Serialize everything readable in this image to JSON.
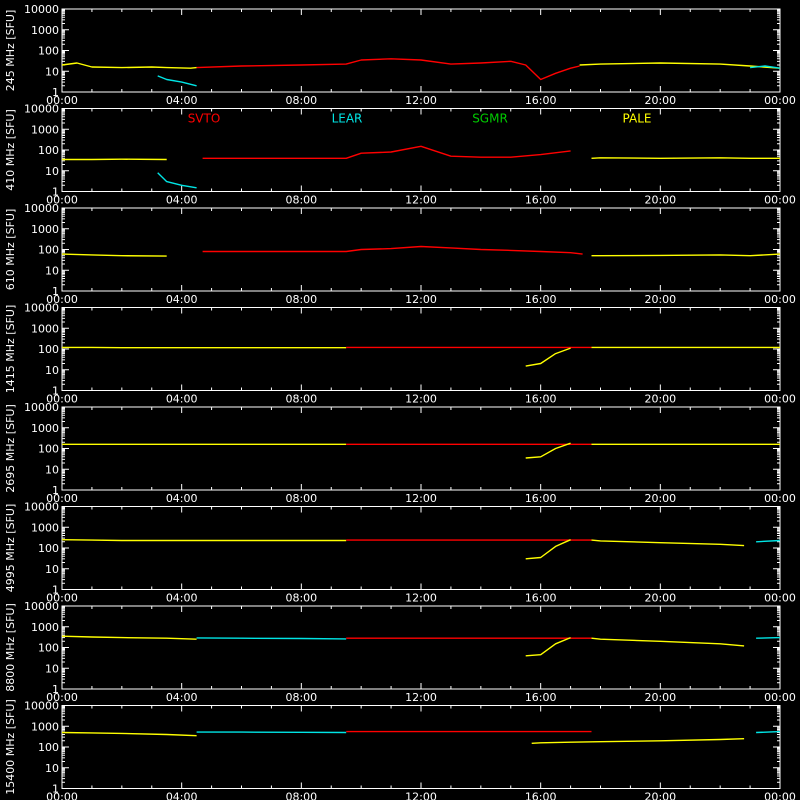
{
  "colors": {
    "background": "#000000",
    "axes": "#ffffff",
    "SVTO": "#ff0000",
    "LEAR": "#00e5e5",
    "SGMR": "#00cc00",
    "PALE": "#ffff00"
  },
  "chart_data": {
    "type": "line",
    "x_tick_labels": [
      "00:00",
      "04:00",
      "08:00",
      "12:00",
      "16:00",
      "20:00",
      "00:00"
    ],
    "xlim": [
      0,
      24
    ],
    "y_tick_labels": [
      "1",
      "10",
      "100",
      "1000",
      "10000"
    ],
    "ylim": [
      1,
      10000
    ],
    "yscale": "log",
    "legend": [
      "SVTO",
      "LEAR",
      "SGMR",
      "PALE"
    ],
    "legend_panel": 1,
    "panels": [
      {
        "ylabel": "245 MHz [SFU]",
        "series": [
          {
            "name": "PALE",
            "x": [
              0,
              0.5,
              1,
              2,
              3,
              3.5,
              4.3,
              4.5
            ],
            "y": [
              20,
              25,
              16,
              15,
              16,
              15,
              14,
              15
            ]
          },
          {
            "name": "LEAR",
            "x": [
              3.2,
              3.5,
              4.0,
              4.5
            ],
            "y": [
              6,
              4,
              3,
              2
            ]
          },
          {
            "name": "SVTO",
            "x": [
              4.5,
              6,
              8,
              9.5,
              10,
              11,
              12,
              13,
              14,
              15,
              15.5,
              16,
              16.5,
              17,
              17.3
            ],
            "y": [
              15,
              18,
              20,
              22,
              35,
              40,
              35,
              22,
              25,
              30,
              20,
              4,
              8,
              14,
              18
            ]
          },
          {
            "name": "PALE",
            "x": [
              17.3,
              18,
              20,
              22,
              23,
              24
            ],
            "y": [
              20,
              22,
              25,
              22,
              18,
              14
            ]
          },
          {
            "name": "LEAR",
            "x": [
              23,
              23.5,
              24
            ],
            "y": [
              15,
              18,
              14
            ]
          }
        ]
      },
      {
        "ylabel": "410 MHz [SFU]",
        "series": [
          {
            "name": "PALE",
            "x": [
              0,
              1,
              2,
              3.5
            ],
            "y": [
              35,
              35,
              36,
              35
            ]
          },
          {
            "name": "LEAR",
            "x": [
              3.2,
              3.5,
              4.0,
              4.5
            ],
            "y": [
              8,
              3,
              2,
              1.5
            ]
          },
          {
            "name": "SVTO",
            "x": [
              4.7,
              5,
              6,
              8,
              9.5,
              10,
              11,
              12,
              13,
              14,
              15,
              16,
              17
            ],
            "y": [
              40,
              40,
              40,
              40,
              40,
              70,
              80,
              150,
              50,
              45,
              45,
              60,
              90
            ]
          },
          {
            "name": "PALE",
            "x": [
              17.7,
              18,
              20,
              22,
              23,
              24
            ],
            "y": [
              40,
              42,
              40,
              42,
              40,
              40
            ]
          }
        ]
      },
      {
        "ylabel": "610 MHz [SFU]",
        "series": [
          {
            "name": "PALE",
            "x": [
              0,
              1,
              2,
              3.5
            ],
            "y": [
              60,
              55,
              50,
              48
            ]
          },
          {
            "name": "SVTO",
            "x": [
              4.7,
              5,
              6,
              8,
              9.5,
              10,
              11,
              12,
              13,
              14,
              15,
              16,
              17,
              17.4
            ],
            "y": [
              80,
              80,
              80,
              80,
              80,
              100,
              110,
              140,
              120,
              100,
              90,
              80,
              70,
              60
            ]
          },
          {
            "name": "PALE",
            "x": [
              17.7,
              18,
              20,
              22,
              23,
              24
            ],
            "y": [
              50,
              50,
              52,
              55,
              50,
              60
            ]
          }
        ]
      },
      {
        "ylabel": "1415 MHz [SFU]",
        "series": [
          {
            "name": "PALE",
            "x": [
              0,
              1,
              2,
              4,
              6,
              8,
              9.5
            ],
            "y": [
              120,
              120,
              115,
              115,
              115,
              115,
              115
            ]
          },
          {
            "name": "SVTO",
            "x": [
              9.5,
              10.5,
              12,
              13,
              14,
              15,
              16,
              17,
              17.7
            ],
            "y": [
              120,
              120,
              120,
              120,
              120,
              120,
              120,
              120,
              120
            ]
          },
          {
            "name": "PALE",
            "x": [
              15.5,
              16,
              16.5,
              17
            ],
            "y": [
              15,
              20,
              60,
              110
            ]
          },
          {
            "name": "PALE",
            "x": [
              17.7,
              18,
              20,
              22,
              23,
              24
            ],
            "y": [
              120,
              120,
              120,
              120,
              120,
              120
            ]
          }
        ]
      },
      {
        "ylabel": "2695 MHz [SFU]",
        "series": [
          {
            "name": "PALE",
            "x": [
              0,
              1,
              2,
              4,
              6,
              8,
              9.5
            ],
            "y": [
              160,
              160,
              160,
              160,
              160,
              160,
              160
            ]
          },
          {
            "name": "SVTO",
            "x": [
              9.5,
              10.5,
              12,
              13,
              14,
              15,
              16,
              17,
              17.7
            ],
            "y": [
              160,
              160,
              160,
              160,
              160,
              160,
              160,
              160,
              160
            ]
          },
          {
            "name": "PALE",
            "x": [
              15.5,
              16,
              16.5,
              17
            ],
            "y": [
              35,
              40,
              100,
              180
            ]
          },
          {
            "name": "PALE",
            "x": [
              17.7,
              18,
              20,
              22,
              23,
              24
            ],
            "y": [
              160,
              160,
              160,
              160,
              160,
              160
            ]
          }
        ]
      },
      {
        "ylabel": "4995 MHz [SFU]",
        "series": [
          {
            "name": "PALE",
            "x": [
              0,
              1,
              2,
              4,
              6,
              8,
              9.5
            ],
            "y": [
              250,
              240,
              230,
              230,
              230,
              230,
              230
            ]
          },
          {
            "name": "SVTO",
            "x": [
              9.5,
              10.5,
              12,
              13,
              14,
              15,
              16,
              17,
              17.7
            ],
            "y": [
              240,
              240,
              240,
              240,
              240,
              240,
              240,
              240,
              240
            ]
          },
          {
            "name": "PALE",
            "x": [
              15.5,
              16,
              16.5,
              17
            ],
            "y": [
              30,
              35,
              120,
              250
            ]
          },
          {
            "name": "PALE",
            "x": [
              17.7,
              18,
              20,
              22,
              22.8
            ],
            "y": [
              240,
              220,
              180,
              150,
              130
            ]
          },
          {
            "name": "LEAR",
            "x": [
              23.2,
              24
            ],
            "y": [
              200,
              230
            ]
          }
        ]
      },
      {
        "ylabel": "8800 MHz [SFU]",
        "series": [
          {
            "name": "PALE",
            "x": [
              0,
              1,
              2,
              3.5,
              4.5
            ],
            "y": [
              350,
              320,
              300,
              280,
              250
            ]
          },
          {
            "name": "LEAR",
            "x": [
              4.5,
              6,
              8,
              9.5
            ],
            "y": [
              290,
              280,
              270,
              260
            ]
          },
          {
            "name": "SVTO",
            "x": [
              9.5,
              10.5,
              12,
              13,
              14,
              15,
              16,
              17,
              17.7
            ],
            "y": [
              280,
              280,
              280,
              280,
              280,
              280,
              280,
              280,
              280
            ]
          },
          {
            "name": "PALE",
            "x": [
              15.5,
              16,
              16.5,
              17
            ],
            "y": [
              40,
              45,
              150,
              300
            ]
          },
          {
            "name": "PALE",
            "x": [
              17.7,
              18,
              20,
              22,
              22.8
            ],
            "y": [
              280,
              250,
              200,
              150,
              120
            ]
          },
          {
            "name": "LEAR",
            "x": [
              23.2,
              24
            ],
            "y": [
              280,
              300
            ]
          }
        ]
      },
      {
        "ylabel": "15400 MHz [SFU]",
        "series": [
          {
            "name": "PALE",
            "x": [
              0,
              1,
              2,
              3.5,
              4.5
            ],
            "y": [
              500,
              480,
              450,
              400,
              350
            ]
          },
          {
            "name": "LEAR",
            "x": [
              4.5,
              6,
              8,
              9.5
            ],
            "y": [
              520,
              520,
              510,
              500
            ]
          },
          {
            "name": "SVTO",
            "x": [
              9.5,
              10.5,
              12,
              13,
              14,
              15,
              16,
              17,
              17.7
            ],
            "y": [
              550,
              550,
              550,
              550,
              550,
              550,
              550,
              550,
              550
            ]
          },
          {
            "name": "PALE",
            "x": [
              15.7,
              16,
              17,
              18,
              20,
              22,
              22.8
            ],
            "y": [
              150,
              160,
              170,
              180,
              200,
              230,
              250
            ]
          },
          {
            "name": "LEAR",
            "x": [
              23.2,
              24
            ],
            "y": [
              500,
              550
            ]
          }
        ]
      }
    ]
  }
}
